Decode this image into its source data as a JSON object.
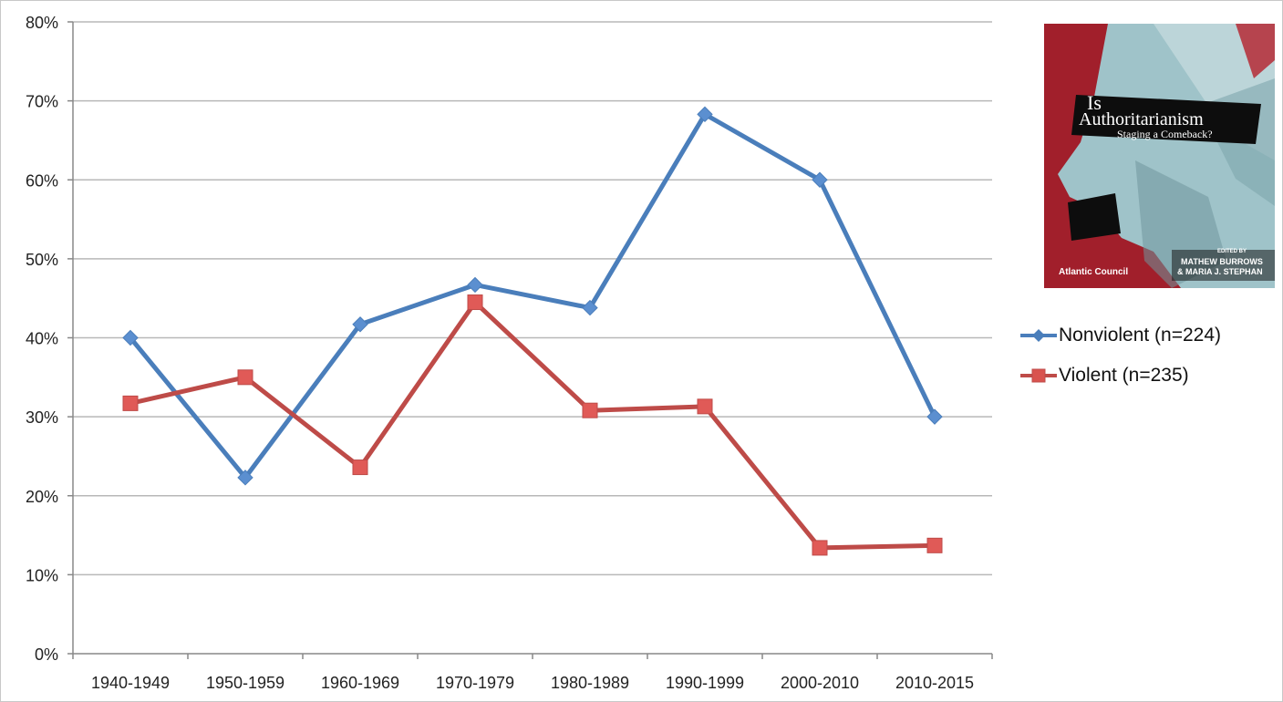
{
  "chart_data": {
    "type": "line",
    "categories": [
      "1940-1949",
      "1950-1959",
      "1960-1969",
      "1970-1979",
      "1980-1989",
      "1990-1999",
      "2000-2010",
      "2010-2015"
    ],
    "y_ticks": [
      "0%",
      "10%",
      "20%",
      "30%",
      "40%",
      "50%",
      "60%",
      "70%",
      "80%"
    ],
    "ylim": [
      0,
      80
    ],
    "grid": "horizontal",
    "legend_position": "right",
    "series": [
      {
        "name": "Nonviolent (n=224)",
        "color": "#4a7ebb",
        "marker": "diamond",
        "values": [
          40,
          22.3,
          41.7,
          46.7,
          43.8,
          68.3,
          60,
          30
        ]
      },
      {
        "name": "Violent (n=235)",
        "color": "#be4b48",
        "marker": "square",
        "values": [
          31.7,
          35,
          23.6,
          44.5,
          30.8,
          31.3,
          13.4,
          13.7
        ]
      }
    ]
  },
  "cover": {
    "title_line1": "Is",
    "title_line2": "Authoritarianism",
    "title_line3": "Staging a Comeback?",
    "edited_by": "EDITED BY",
    "editor1": "MATHEW BURROWS",
    "editor2": "& MARIA J. STEPHAN",
    "publisher": "Atlantic Council"
  }
}
